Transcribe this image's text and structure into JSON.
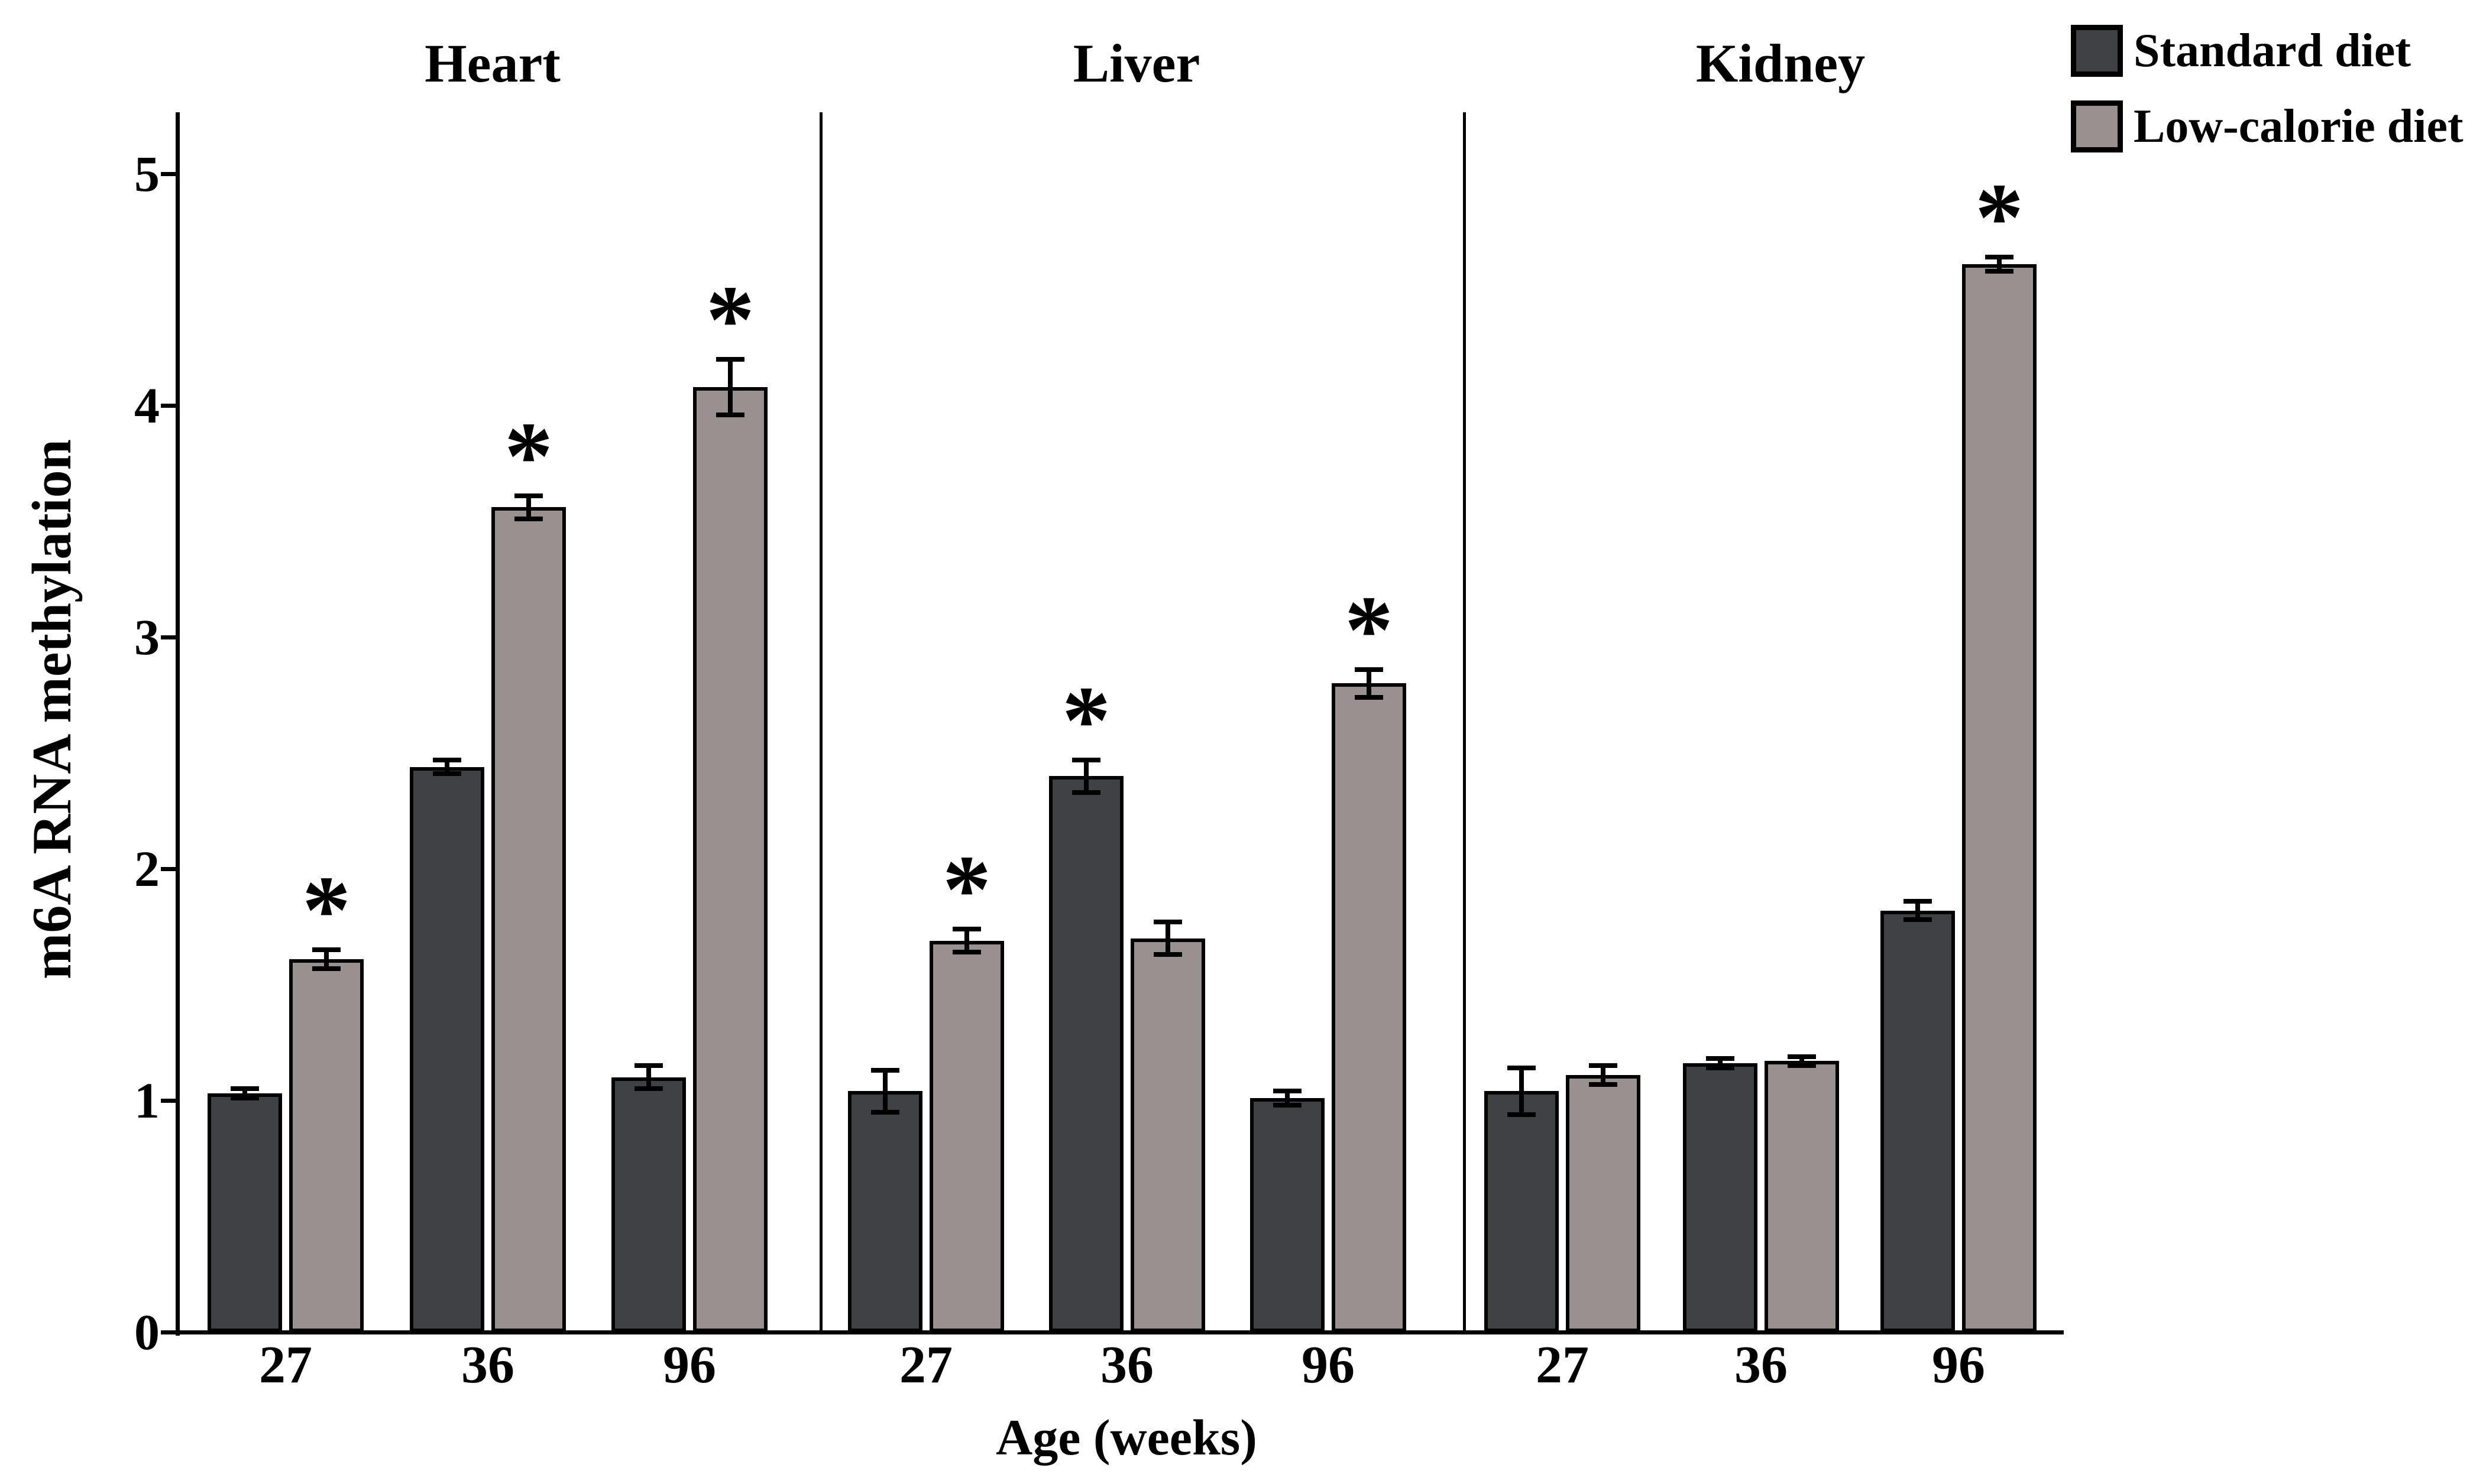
{
  "figure": {
    "y_axis_label": "m6A RNA methylation",
    "x_axis_label": "Age (weeks)"
  },
  "chart_data": {
    "type": "bar",
    "title": "",
    "categories": [
      "27",
      "36",
      "96"
    ],
    "xlabel": "Age (weeks)",
    "ylabel": "m6A RNA methylation",
    "ylim": [
      0,
      5
    ],
    "y_ticks": [
      0,
      1,
      2,
      3,
      4,
      5
    ],
    "grid": false,
    "legend_position": "top-right",
    "significance_symbol": "*",
    "error_bars": "sem",
    "legend": [
      {
        "label": "Standard diet",
        "color": "#3F4144"
      },
      {
        "label": "Low-calorie diet",
        "color": "#98918F"
      }
    ],
    "panels": [
      {
        "title": "Heart",
        "series": [
          {
            "name": "Standard diet",
            "values": [
              1.03,
              2.44,
              1.1
            ],
            "errors": [
              0.02,
              0.03,
              0.05
            ],
            "significant": [
              false,
              false,
              false
            ]
          },
          {
            "name": "Low-calorie diet",
            "values": [
              1.61,
              3.56,
              4.08
            ],
            "errors": [
              0.04,
              0.05,
              0.12
            ],
            "significant": [
              true,
              true,
              true
            ]
          }
        ]
      },
      {
        "title": "Liver",
        "series": [
          {
            "name": "Standard diet",
            "values": [
              1.04,
              2.4,
              1.01
            ],
            "errors": [
              0.09,
              0.07,
              0.03
            ],
            "significant": [
              false,
              true,
              false
            ]
          },
          {
            "name": "Low-calorie diet",
            "values": [
              1.69,
              1.7,
              2.8
            ],
            "errors": [
              0.05,
              0.07,
              0.06
            ],
            "significant": [
              true,
              false,
              true
            ]
          }
        ]
      },
      {
        "title": "Kidney",
        "series": [
          {
            "name": "Standard diet",
            "values": [
              1.04,
              1.16,
              1.82
            ],
            "errors": [
              0.1,
              0.02,
              0.04
            ],
            "significant": [
              false,
              false,
              false
            ]
          },
          {
            "name": "Low-calorie diet",
            "values": [
              1.11,
              1.17,
              4.61
            ],
            "errors": [
              0.04,
              0.02,
              0.03
            ],
            "significant": [
              false,
              false,
              true
            ]
          }
        ]
      }
    ]
  }
}
